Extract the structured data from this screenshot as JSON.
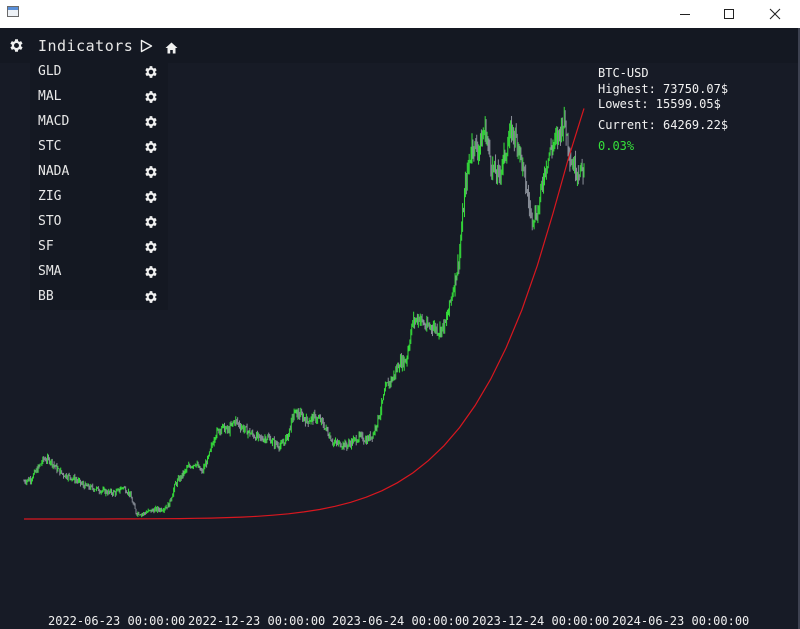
{
  "window": {
    "title": "",
    "minimize_icon": "minimize-icon",
    "maximize_icon": "maximize-icon",
    "close_icon": "close-icon"
  },
  "toolbar": {
    "settings_icon": "gear-icon",
    "indicators_label": "Indicators",
    "play_icon": "play-icon",
    "home_icon": "home-icon"
  },
  "indicators": [
    {
      "label": "GLD"
    },
    {
      "label": "MAL"
    },
    {
      "label": "MACD"
    },
    {
      "label": "STC"
    },
    {
      "label": "NADA"
    },
    {
      "label": "ZIG"
    },
    {
      "label": "STO"
    },
    {
      "label": "SF"
    },
    {
      "label": "SMA"
    },
    {
      "label": "BB"
    }
  ],
  "stats": {
    "symbol": "BTC-USD",
    "highest": "Highest: 73750.07$",
    "lowest": "Lowest: 15599.05$",
    "current": "Current: 64269.22$",
    "change": "0.03%"
  },
  "colors": {
    "background": "#171b26",
    "candles": "#35e03a",
    "trend": "#d8171f",
    "text": "#f2f2f2"
  },
  "chart_data": {
    "type": "line",
    "x_tick_labels": [
      "2022-06-23 00:00:00",
      "2022-12-23 00:00:00",
      "2023-06-24 00:00:00",
      "2023-12-24 00:00:00",
      "2024-06-23 00:00:00"
    ],
    "ylim": [
      15599.05,
      73750.07
    ],
    "series": [
      {
        "values": [
          20900,
          21200,
          22500,
          24000,
          23800,
          22600,
          21800,
          21500,
          21000,
          20300,
          20000,
          19800,
          19500,
          19300,
          19300,
          20100,
          19200,
          16500,
          16300,
          16700,
          16900,
          17000,
          17600,
          20500,
          21700,
          22900,
          23400,
          22100,
          24200,
          27400,
          28500,
          27900,
          29400,
          28500,
          27800,
          27200,
          26800,
          27000,
          26200,
          25800,
          27100,
          30500,
          30100,
          29300,
          29800,
          29400,
          27900,
          26200,
          26100,
          25900,
          26500,
          27100,
          26600,
          27500,
          30400,
          34200,
          35300,
          37500,
          37800,
          43100,
          43800,
          42400,
          42600,
          41900,
          42900,
          47200,
          51700,
          62200,
          68000,
          67300,
          70200,
          64800,
          63500,
          66500,
          69900,
          68200,
          63200,
          57800,
          58500,
          64400,
          67400,
          68900,
          71500,
          65800,
          64300,
          64269
        ]
      },
      {
        "name": "",
        "values": [
          15600,
          15600,
          15600,
          15600,
          15601,
          15604,
          15608,
          15615,
          15625,
          15640,
          15660,
          15690,
          15730,
          15790,
          15870,
          15980,
          16130,
          16330,
          16590,
          16930,
          17370,
          17930,
          18640,
          19540,
          20660,
          22050,
          23760,
          25850,
          28390,
          31460,
          35150,
          39560,
          44800,
          51000,
          58270,
          66000,
          73000
        ]
      }
    ]
  }
}
